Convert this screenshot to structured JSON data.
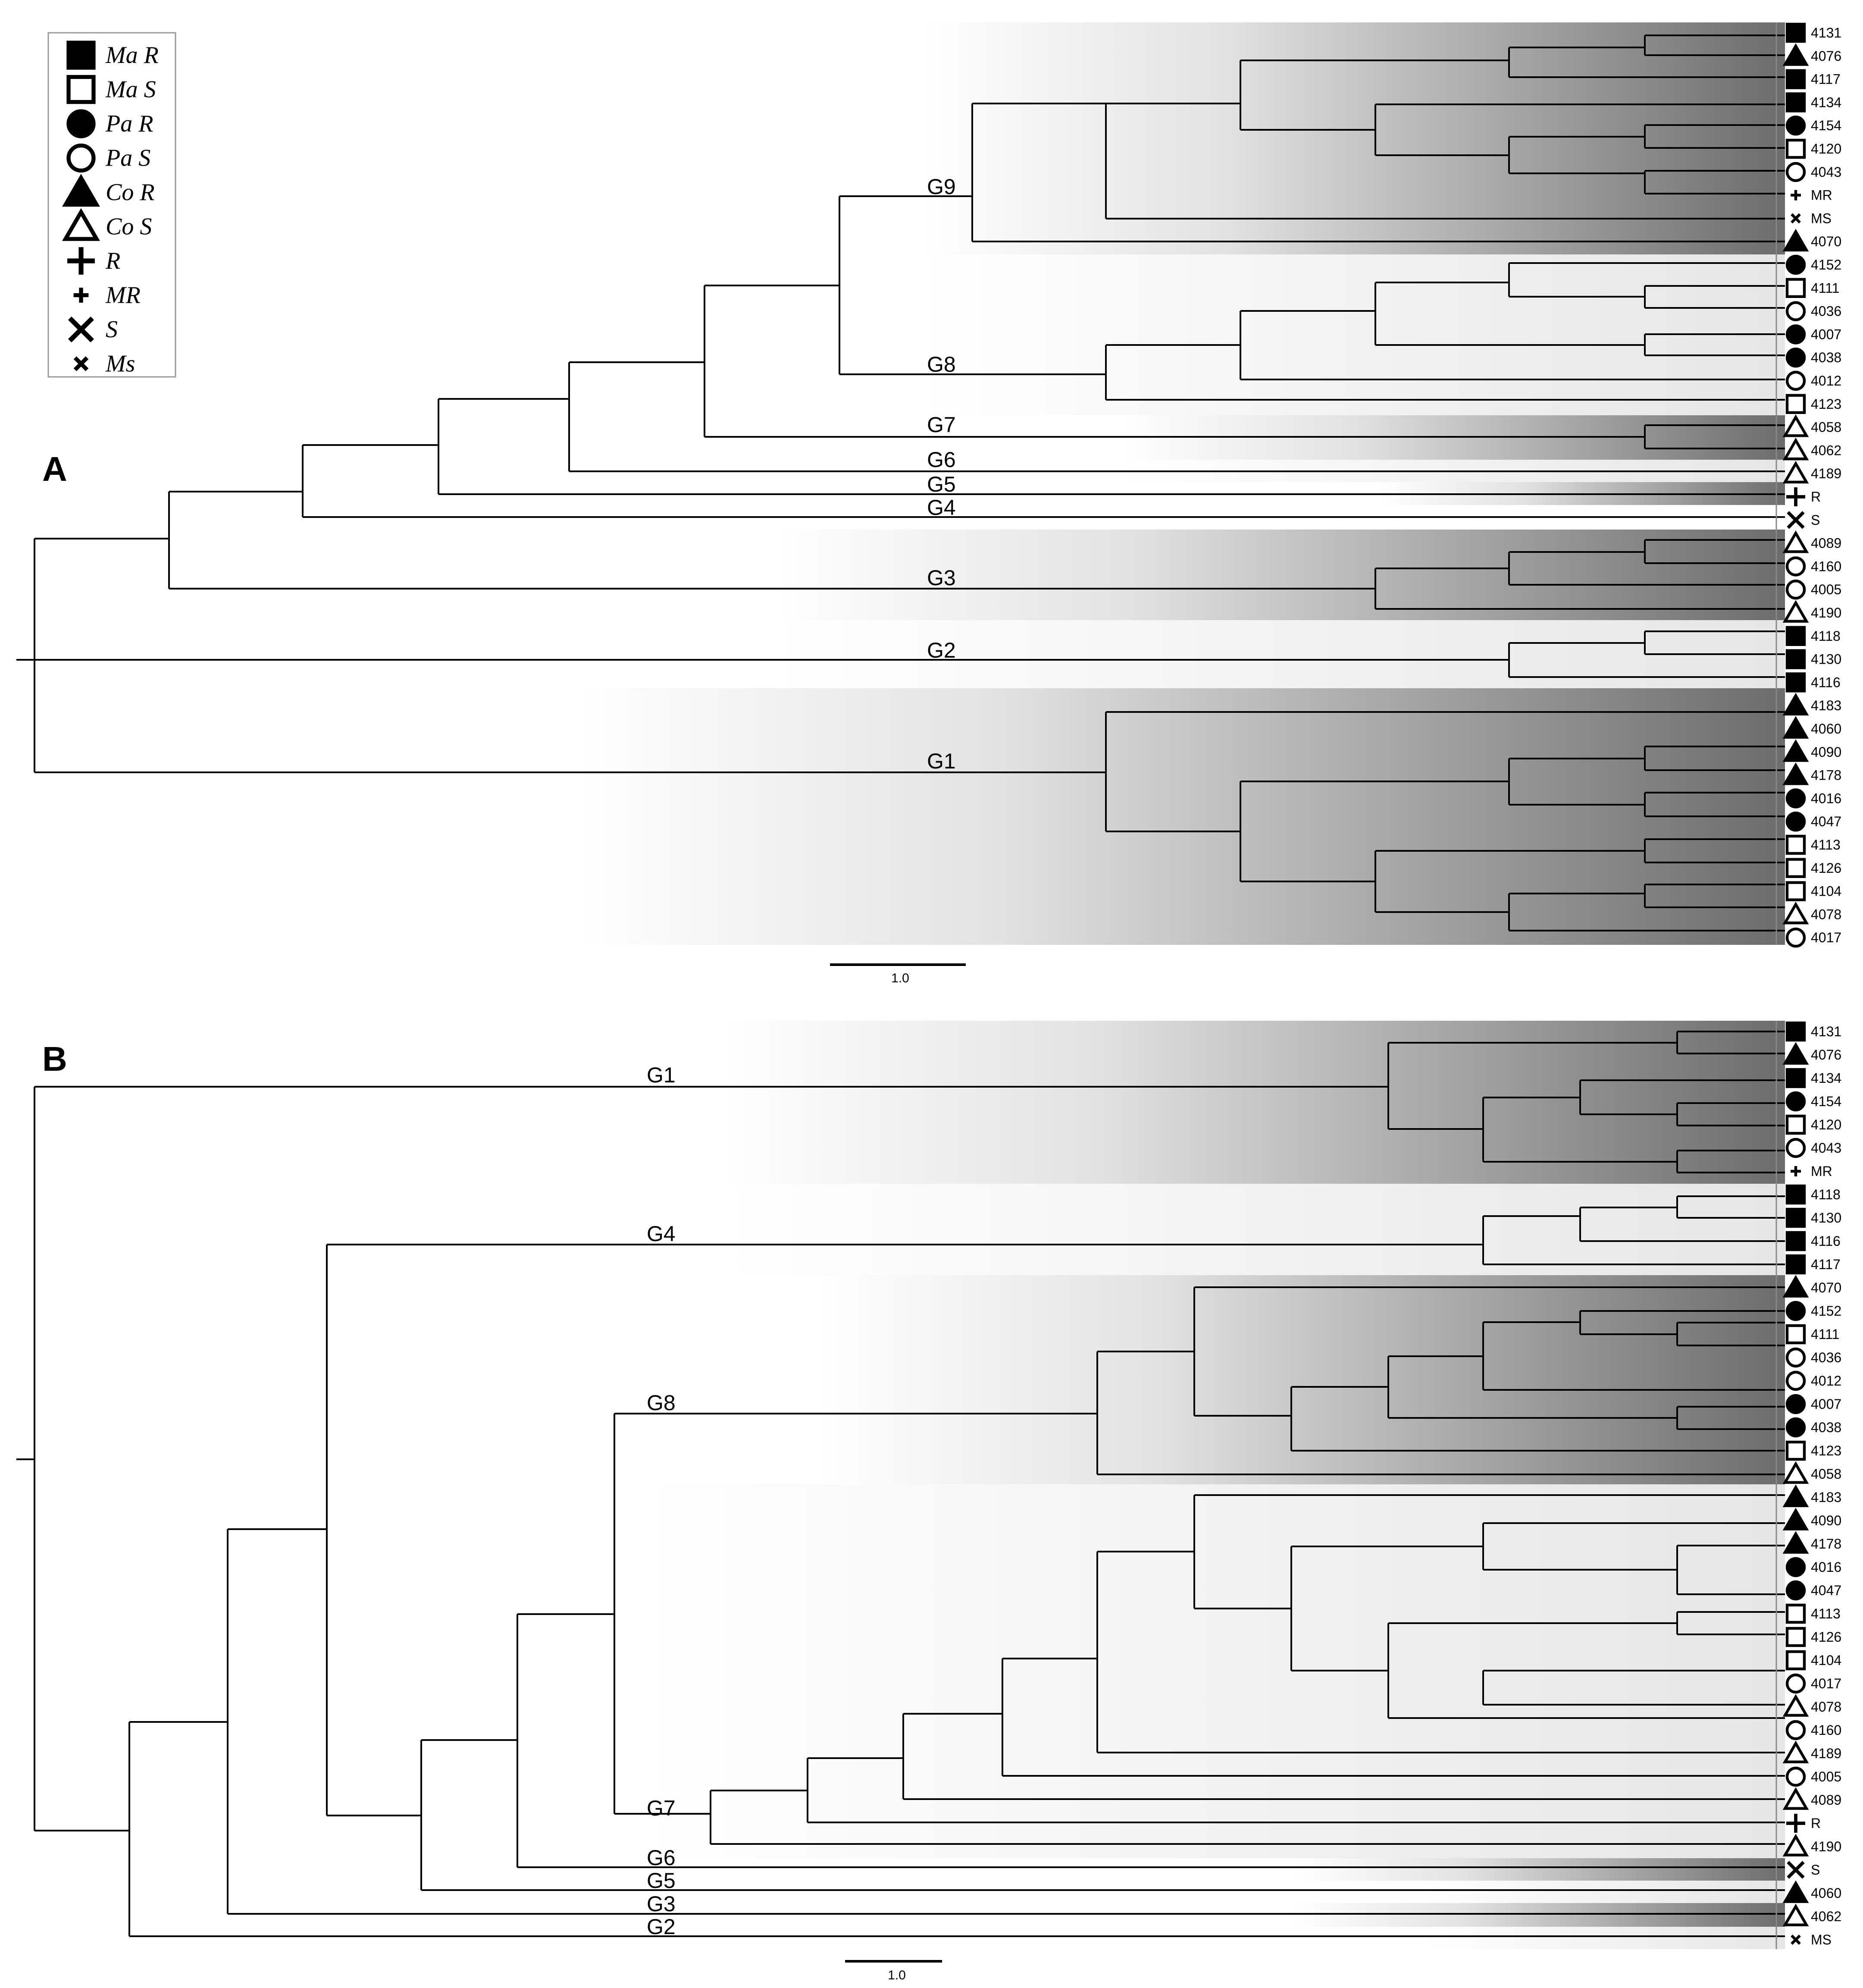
{
  "legend": [
    {
      "symbol": "square-filled",
      "label": "Ma R"
    },
    {
      "symbol": "square-open",
      "label": "Ma S"
    },
    {
      "symbol": "circle-filled",
      "label": "Pa R"
    },
    {
      "symbol": "circle-open",
      "label": "Pa S"
    },
    {
      "symbol": "triangle-filled",
      "label": "Co R"
    },
    {
      "symbol": "triangle-open",
      "label": "Co S"
    },
    {
      "symbol": "plus-large",
      "label": "R"
    },
    {
      "symbol": "plus-small",
      "label": "MR"
    },
    {
      "symbol": "x-large",
      "label": "S"
    },
    {
      "symbol": "x-small",
      "label": "Ms"
    }
  ],
  "panel_a": {
    "letter": "A",
    "scale_label": "1.0",
    "groups": [
      {
        "name": "G9",
        "leaves": [
          "4131",
          "4076",
          "4117",
          "4134",
          "4154",
          "4120",
          "4043",
          "MR",
          "MS",
          "4070"
        ]
      },
      {
        "name": "G8",
        "leaves": [
          "4152",
          "4111",
          "4036",
          "4007",
          "4038",
          "4012",
          "4123"
        ]
      },
      {
        "name": "G7",
        "leaves": [
          "4058",
          "4062"
        ]
      },
      {
        "name": "G6",
        "leaves": [
          "4189"
        ]
      },
      {
        "name": "G5",
        "leaves": [
          "R"
        ]
      },
      {
        "name": "G4",
        "leaves": [
          "S"
        ]
      },
      {
        "name": "G3",
        "leaves": [
          "4089",
          "4160",
          "4005",
          "4190"
        ]
      },
      {
        "name": "G2",
        "leaves": [
          "4118",
          "4130",
          "4116"
        ]
      },
      {
        "name": "G1",
        "leaves": [
          "4183",
          "4060",
          "4090",
          "4178",
          "4016",
          "4047",
          "4113",
          "4126",
          "4104",
          "4078",
          "4017"
        ]
      }
    ],
    "leaves": [
      {
        "label": "4131",
        "symbol": "square-filled"
      },
      {
        "label": "4076",
        "symbol": "triangle-filled"
      },
      {
        "label": "4117",
        "symbol": "square-filled"
      },
      {
        "label": "4134",
        "symbol": "square-filled"
      },
      {
        "label": "4154",
        "symbol": "circle-filled"
      },
      {
        "label": "4120",
        "symbol": "square-open"
      },
      {
        "label": "4043",
        "symbol": "circle-open"
      },
      {
        "label": "MR",
        "symbol": "plus-small"
      },
      {
        "label": "MS",
        "symbol": "x-small"
      },
      {
        "label": "4070",
        "symbol": "triangle-filled"
      },
      {
        "label": "4152",
        "symbol": "circle-filled"
      },
      {
        "label": "4111",
        "symbol": "square-open"
      },
      {
        "label": "4036",
        "symbol": "circle-open"
      },
      {
        "label": "4007",
        "symbol": "circle-filled"
      },
      {
        "label": "4038",
        "symbol": "circle-filled"
      },
      {
        "label": "4012",
        "symbol": "circle-open"
      },
      {
        "label": "4123",
        "symbol": "square-open"
      },
      {
        "label": "4058",
        "symbol": "triangle-open"
      },
      {
        "label": "4062",
        "symbol": "triangle-open"
      },
      {
        "label": "4189",
        "symbol": "triangle-open"
      },
      {
        "label": "R",
        "symbol": "plus-large"
      },
      {
        "label": "S",
        "symbol": "x-large"
      },
      {
        "label": "4089",
        "symbol": "triangle-open"
      },
      {
        "label": "4160",
        "symbol": "circle-open"
      },
      {
        "label": "4005",
        "symbol": "circle-open"
      },
      {
        "label": "4190",
        "symbol": "triangle-open"
      },
      {
        "label": "4118",
        "symbol": "square-filled"
      },
      {
        "label": "4130",
        "symbol": "square-filled"
      },
      {
        "label": "4116",
        "symbol": "square-filled"
      },
      {
        "label": "4183",
        "symbol": "triangle-filled"
      },
      {
        "label": "4060",
        "symbol": "triangle-filled"
      },
      {
        "label": "4090",
        "symbol": "triangle-filled"
      },
      {
        "label": "4178",
        "symbol": "triangle-filled"
      },
      {
        "label": "4016",
        "symbol": "circle-filled"
      },
      {
        "label": "4047",
        "symbol": "circle-filled"
      },
      {
        "label": "4113",
        "symbol": "square-open"
      },
      {
        "label": "4126",
        "symbol": "square-open"
      },
      {
        "label": "4104",
        "symbol": "square-open"
      },
      {
        "label": "4078",
        "symbol": "triangle-open"
      },
      {
        "label": "4017",
        "symbol": "circle-open"
      }
    ]
  },
  "panel_b": {
    "letter": "B",
    "scale_label": "1.0",
    "groups": [
      {
        "name": "G1",
        "leaves": [
          "4131",
          "4076",
          "4134",
          "4154",
          "4120",
          "4043",
          "MR"
        ]
      },
      {
        "name": "G4",
        "leaves": [
          "4118",
          "4130",
          "4116",
          "4117"
        ]
      },
      {
        "name": "G8",
        "leaves": [
          "4070",
          "4152",
          "4111",
          "4036",
          "4012",
          "4007",
          "4038",
          "4123",
          "4058"
        ]
      },
      {
        "name": "G7",
        "leaves": [
          "4183",
          "4090",
          "4178",
          "4016",
          "4047",
          "4113",
          "4126",
          "4104",
          "4017",
          "4078",
          "4160",
          "4189",
          "4005",
          "4089",
          "R",
          "4190"
        ]
      },
      {
        "name": "G6",
        "leaves": [
          "S"
        ]
      },
      {
        "name": "G5",
        "leaves": [
          "4060"
        ]
      },
      {
        "name": "G3",
        "leaves": [
          "4062"
        ]
      },
      {
        "name": "G2",
        "leaves": [
          "MS"
        ]
      }
    ],
    "leaves": [
      {
        "label": "4131",
        "symbol": "square-filled"
      },
      {
        "label": "4076",
        "symbol": "triangle-filled"
      },
      {
        "label": "4134",
        "symbol": "square-filled"
      },
      {
        "label": "4154",
        "symbol": "circle-filled"
      },
      {
        "label": "4120",
        "symbol": "square-open"
      },
      {
        "label": "4043",
        "symbol": "circle-open"
      },
      {
        "label": "MR",
        "symbol": "plus-small"
      },
      {
        "label": "4118",
        "symbol": "square-filled"
      },
      {
        "label": "4130",
        "symbol": "square-filled"
      },
      {
        "label": "4116",
        "symbol": "square-filled"
      },
      {
        "label": "4117",
        "symbol": "square-filled"
      },
      {
        "label": "4070",
        "symbol": "triangle-filled"
      },
      {
        "label": "4152",
        "symbol": "circle-filled"
      },
      {
        "label": "4111",
        "symbol": "square-open"
      },
      {
        "label": "4036",
        "symbol": "circle-open"
      },
      {
        "label": "4012",
        "symbol": "circle-open"
      },
      {
        "label": "4007",
        "symbol": "circle-filled"
      },
      {
        "label": "4038",
        "symbol": "circle-filled"
      },
      {
        "label": "4123",
        "symbol": "square-open"
      },
      {
        "label": "4058",
        "symbol": "triangle-open"
      },
      {
        "label": "4183",
        "symbol": "triangle-filled"
      },
      {
        "label": "4090",
        "symbol": "triangle-filled"
      },
      {
        "label": "4178",
        "symbol": "triangle-filled"
      },
      {
        "label": "4016",
        "symbol": "circle-filled"
      },
      {
        "label": "4047",
        "symbol": "circle-filled"
      },
      {
        "label": "4113",
        "symbol": "square-open"
      },
      {
        "label": "4126",
        "symbol": "square-open"
      },
      {
        "label": "4104",
        "symbol": "square-open"
      },
      {
        "label": "4017",
        "symbol": "circle-open"
      },
      {
        "label": "4078",
        "symbol": "triangle-open"
      },
      {
        "label": "4160",
        "symbol": "circle-open"
      },
      {
        "label": "4189",
        "symbol": "triangle-open"
      },
      {
        "label": "4005",
        "symbol": "circle-open"
      },
      {
        "label": "4089",
        "symbol": "triangle-open"
      },
      {
        "label": "R",
        "symbol": "plus-large"
      },
      {
        "label": "4190",
        "symbol": "triangle-open"
      },
      {
        "label": "S",
        "symbol": "x-large"
      },
      {
        "label": "4060",
        "symbol": "triangle-filled"
      },
      {
        "label": "4062",
        "symbol": "triangle-open"
      },
      {
        "label": "MS",
        "symbol": "x-small"
      }
    ]
  }
}
